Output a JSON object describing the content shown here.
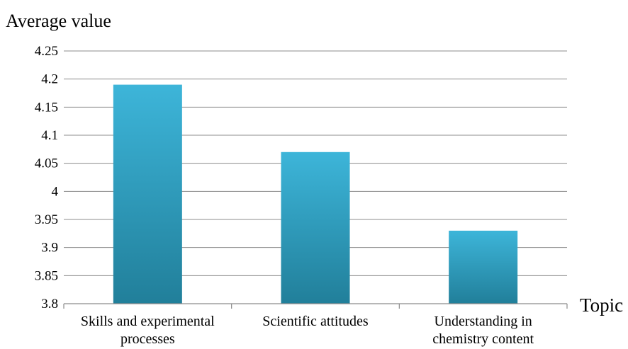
{
  "chart_data": {
    "type": "bar",
    "title": "",
    "ylabel": "Average value",
    "xlabel": "Topic",
    "categories": [
      [
        "Skills and experimental",
        "processes"
      ],
      [
        "Scientific attitudes"
      ],
      [
        "Understanding in",
        "chemistry content"
      ]
    ],
    "values": [
      4.19,
      4.07,
      3.93
    ],
    "ylim": [
      3.8,
      4.25
    ],
    "yticks": [
      "3.8",
      "3.85",
      "3.9",
      "3.95",
      "4",
      "4.05",
      "4.1",
      "4.15",
      "4.2",
      "4.25"
    ],
    "grid": true,
    "legend": "none",
    "bar_color_top": "#3db5d9",
    "bar_color_bottom": "#217f9a",
    "grid_color": "#8c8c8c"
  }
}
